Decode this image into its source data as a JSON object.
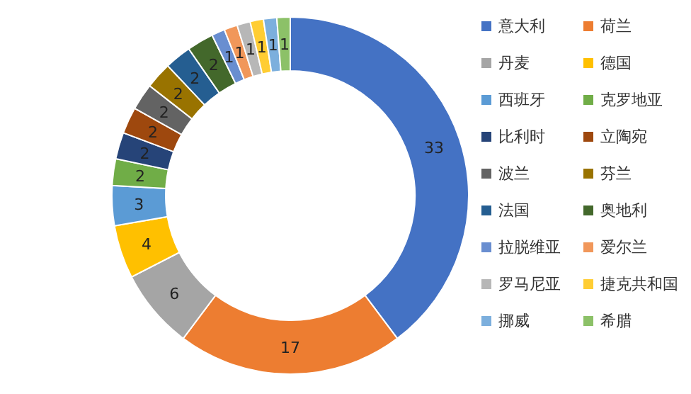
{
  "chart_data": {
    "type": "donut",
    "legend": "right",
    "data_labels": true,
    "categories": [
      "意大利",
      "荷兰",
      "丹麦",
      "德国",
      "西班牙",
      "克罗地亚",
      "比利时",
      "立陶宛",
      "波兰",
      "芬兰",
      "法国",
      "奥地利",
      "拉脱维亚",
      "爱尔兰",
      "罗马尼亚",
      "捷克共和国",
      "挪威",
      "希腊"
    ],
    "values": [
      33,
      17,
      6,
      4,
      3,
      2,
      2,
      2,
      2,
      2,
      2,
      2,
      1,
      1,
      1,
      1,
      1,
      1
    ],
    "colors": [
      "#4472c4",
      "#ed7d31",
      "#a5a5a5",
      "#ffc000",
      "#5b9bd5",
      "#70ad47",
      "#264478",
      "#9e480e",
      "#636363",
      "#997300",
      "#255e91",
      "#43682b",
      "#698ed0",
      "#f1975a",
      "#b7b7b7",
      "#ffcd33",
      "#7cafdd",
      "#8cc168"
    ]
  }
}
